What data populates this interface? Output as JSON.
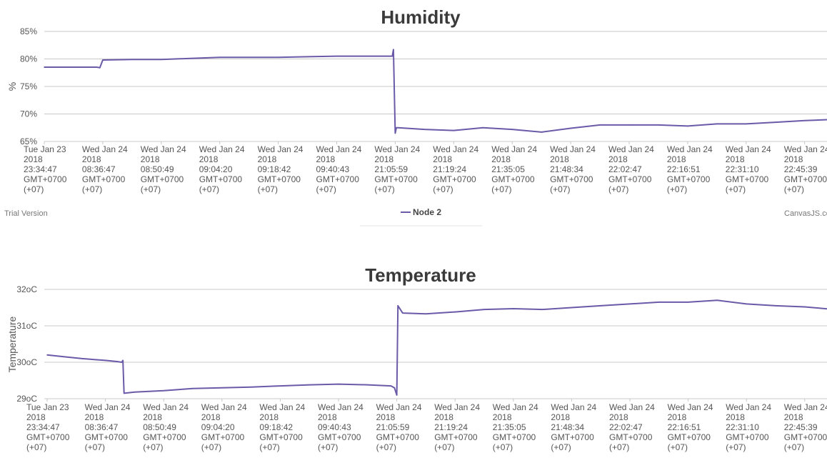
{
  "series_color": "#6a5aa8",
  "chart_data": [
    {
      "type": "line",
      "title": "Humidity",
      "ylabel": "%",
      "xlabel": "",
      "ylim": [
        65,
        85
      ],
      "yticks": [
        65,
        70,
        75,
        80,
        85
      ],
      "ytick_labels": [
        "65%",
        "70%",
        "75%",
        "80%",
        "85%"
      ],
      "grid": true,
      "legend_position": "bottom-center",
      "watermark_left": "Trial Version",
      "watermark_right": "CanvasJS.com",
      "x_tick_labels": [
        [
          "Tue Jan 23",
          "2018",
          "23:34:47",
          "GMT+0700",
          "(+07)"
        ],
        [
          "Wed Jan 24",
          "2018",
          "08:36:47",
          "GMT+0700",
          "(+07)"
        ],
        [
          "Wed Jan 24",
          "2018",
          "08:50:49",
          "GMT+0700",
          "(+07)"
        ],
        [
          "Wed Jan 24",
          "2018",
          "09:04:20",
          "GMT+0700",
          "(+07)"
        ],
        [
          "Wed Jan 24",
          "2018",
          "09:18:42",
          "GMT+0700",
          "(+07)"
        ],
        [
          "Wed Jan 24",
          "2018",
          "09:40:43",
          "GMT+0700",
          "(+07)"
        ],
        [
          "Wed Jan 24",
          "2018",
          "21:05:59",
          "GMT+0700",
          "(+07)"
        ],
        [
          "Wed Jan 24",
          "2018",
          "21:19:24",
          "GMT+0700",
          "(+07)"
        ],
        [
          "Wed Jan 24",
          "2018",
          "21:35:05",
          "GMT+0700",
          "(+07)"
        ],
        [
          "Wed Jan 24",
          "2018",
          "21:48:34",
          "GMT+0700",
          "(+07)"
        ],
        [
          "Wed Jan 24",
          "2018",
          "22:02:47",
          "GMT+0700",
          "(+07)"
        ],
        [
          "Wed Jan 24",
          "2018",
          "22:16:51",
          "GMT+0700",
          "(+07)"
        ],
        [
          "Wed Jan 24",
          "2018",
          "22:31:10",
          "GMT+0700",
          "(+07)"
        ],
        [
          "Wed Jan 24",
          "2018",
          "22:45:39",
          "GMT+0700",
          "(+07)"
        ]
      ],
      "series": [
        {
          "name": "Node 2",
          "x": [
            0,
            0.9,
            0.95,
            1.0,
            1.5,
            2.0,
            2.5,
            3.0,
            3.5,
            4.0,
            4.5,
            5.0,
            5.5,
            5.95,
            5.97,
            6.0,
            6.02,
            6.05,
            6.5,
            7.0,
            7.5,
            8.0,
            8.5,
            9.0,
            9.5,
            10.0,
            10.5,
            11.0,
            11.5,
            12.0,
            12.5,
            13.0,
            13.5,
            13.85
          ],
          "y": [
            78.5,
            78.5,
            78.4,
            79.8,
            79.9,
            79.9,
            80.1,
            80.3,
            80.3,
            80.3,
            80.4,
            80.5,
            80.5,
            80.5,
            81.7,
            66.5,
            67.5,
            67.5,
            67.2,
            67.0,
            67.5,
            67.2,
            66.7,
            67.4,
            68.0,
            68.0,
            68.0,
            67.8,
            68.2,
            68.2,
            68.5,
            68.8,
            69.0,
            69.4
          ]
        }
      ]
    },
    {
      "type": "line",
      "title": "Temperature",
      "ylabel": "Temperature",
      "xlabel": "",
      "ylim": [
        29,
        32
      ],
      "yticks": [
        29,
        30,
        31,
        32
      ],
      "ytick_labels": [
        "29oC",
        "30oC",
        "31oC",
        "32oC"
      ],
      "grid": true,
      "x_tick_labels": [
        [
          "Tue Jan 23",
          "2018",
          "23:34:47",
          "GMT+0700",
          "(+07)"
        ],
        [
          "Wed Jan 24",
          "2018",
          "08:36:47",
          "GMT+0700",
          "(+07)"
        ],
        [
          "Wed Jan 24",
          "2018",
          "08:50:49",
          "GMT+0700",
          "(+07)"
        ],
        [
          "Wed Jan 24",
          "2018",
          "09:04:20",
          "GMT+0700",
          "(+07)"
        ],
        [
          "Wed Jan 24",
          "2018",
          "09:18:42",
          "GMT+0700",
          "(+07)"
        ],
        [
          "Wed Jan 24",
          "2018",
          "09:40:43",
          "GMT+0700",
          "(+07)"
        ],
        [
          "Wed Jan 24",
          "2018",
          "21:05:59",
          "GMT+0700",
          "(+07)"
        ],
        [
          "Wed Jan 24",
          "2018",
          "21:19:24",
          "GMT+0700",
          "(+07)"
        ],
        [
          "Wed Jan 24",
          "2018",
          "21:35:05",
          "GMT+0700",
          "(+07)"
        ],
        [
          "Wed Jan 24",
          "2018",
          "21:48:34",
          "GMT+0700",
          "(+07)"
        ],
        [
          "Wed Jan 24",
          "2018",
          "22:02:47",
          "GMT+0700",
          "(+07)"
        ],
        [
          "Wed Jan 24",
          "2018",
          "22:16:51",
          "GMT+0700",
          "(+07)"
        ],
        [
          "Wed Jan 24",
          "2018",
          "22:31:10",
          "GMT+0700",
          "(+07)"
        ],
        [
          "Wed Jan 24",
          "2018",
          "22:45:39",
          "GMT+0700",
          "(+07)"
        ]
      ],
      "series": [
        {
          "name": "Node 2",
          "x": [
            0,
            0.3,
            0.6,
            1.0,
            1.2,
            1.28,
            1.3,
            1.32,
            1.5,
            2.0,
            2.5,
            3.0,
            3.5,
            4.0,
            4.5,
            5.0,
            5.5,
            5.9,
            5.96,
            6.0,
            6.02,
            6.1,
            6.5,
            7.0,
            7.5,
            8.0,
            8.5,
            9.0,
            9.5,
            10.0,
            10.5,
            11.0,
            11.5,
            12.0,
            12.5,
            13.0,
            13.5,
            13.9
          ],
          "y": [
            30.2,
            30.15,
            30.1,
            30.05,
            30.02,
            30.0,
            30.05,
            29.15,
            29.18,
            29.22,
            29.28,
            29.3,
            29.32,
            29.35,
            29.38,
            29.4,
            29.38,
            29.35,
            29.3,
            29.1,
            31.55,
            31.35,
            31.33,
            31.38,
            31.45,
            31.47,
            31.45,
            31.5,
            31.55,
            31.6,
            31.65,
            31.65,
            31.7,
            31.6,
            31.55,
            31.52,
            31.45,
            31.42
          ]
        }
      ]
    }
  ]
}
